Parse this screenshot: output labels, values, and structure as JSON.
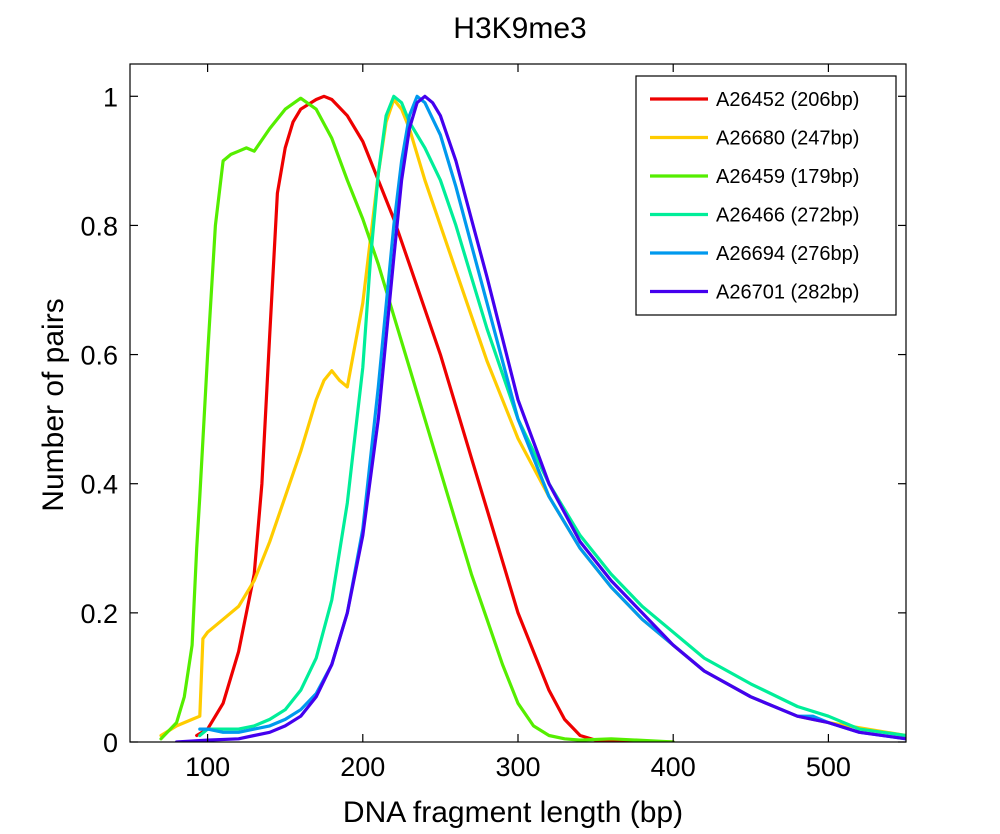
{
  "chart_data": {
    "type": "line",
    "title": "H3K9me3",
    "xlabel": "DNA fragment length (bp)",
    "ylabel": "Number of pairs",
    "xlim": [
      50,
      550
    ],
    "ylim": [
      0,
      1.05
    ],
    "xticks": [
      100,
      200,
      300,
      400,
      500
    ],
    "xtick_labels": [
      "100",
      "200",
      "300",
      "400",
      "500"
    ],
    "yticks": [
      0,
      0.2,
      0.4,
      0.6,
      0.8,
      1
    ],
    "ytick_labels": [
      "0",
      "0.2",
      "0.4",
      "0.6",
      "0.8",
      "1"
    ],
    "grid": false,
    "legend_position": "top-right",
    "series": [
      {
        "name": "A26452 (206bp)",
        "color": "#ee0000",
        "x": [
          93,
          100,
          110,
          120,
          130,
          135,
          140,
          145,
          150,
          155,
          160,
          170,
          175,
          180,
          190,
          200,
          210,
          220,
          230,
          240,
          250,
          260,
          270,
          280,
          290,
          300,
          310,
          320,
          330,
          340,
          350,
          360,
          400
        ],
        "y": [
          0.01,
          0.02,
          0.06,
          0.14,
          0.26,
          0.4,
          0.63,
          0.85,
          0.92,
          0.96,
          0.98,
          0.995,
          1.0,
          0.995,
          0.97,
          0.93,
          0.87,
          0.81,
          0.74,
          0.67,
          0.6,
          0.52,
          0.44,
          0.36,
          0.28,
          0.2,
          0.14,
          0.08,
          0.035,
          0.01,
          0.003,
          0.0,
          0.0
        ]
      },
      {
        "name": "A26680 (247bp)",
        "color": "#ffcc00",
        "x": [
          70,
          80,
          90,
          95,
          97,
          100,
          110,
          120,
          130,
          140,
          150,
          160,
          170,
          175,
          180,
          185,
          190,
          200,
          210,
          215,
          220,
          225,
          230,
          240,
          250,
          260,
          270,
          280,
          300,
          320,
          340,
          360,
          380,
          400,
          420,
          450,
          480,
          500,
          550
        ],
        "y": [
          0.01,
          0.025,
          0.035,
          0.04,
          0.16,
          0.17,
          0.19,
          0.21,
          0.25,
          0.31,
          0.38,
          0.45,
          0.53,
          0.56,
          0.575,
          0.56,
          0.55,
          0.68,
          0.88,
          0.96,
          0.995,
          0.98,
          0.95,
          0.87,
          0.8,
          0.73,
          0.66,
          0.59,
          0.47,
          0.38,
          0.3,
          0.24,
          0.19,
          0.15,
          0.11,
          0.07,
          0.04,
          0.03,
          0.01
        ]
      },
      {
        "name": "A26459 (179bp)",
        "color": "#55ee00",
        "x": [
          70,
          80,
          85,
          90,
          93,
          95,
          100,
          105,
          110,
          115,
          120,
          125,
          130,
          140,
          150,
          160,
          170,
          180,
          190,
          200,
          210,
          220,
          230,
          240,
          250,
          260,
          270,
          280,
          290,
          300,
          310,
          320,
          330,
          340,
          360,
          400
        ],
        "y": [
          0.005,
          0.03,
          0.07,
          0.15,
          0.3,
          0.38,
          0.6,
          0.8,
          0.9,
          0.91,
          0.915,
          0.92,
          0.915,
          0.95,
          0.98,
          0.997,
          0.98,
          0.935,
          0.87,
          0.81,
          0.74,
          0.66,
          0.58,
          0.5,
          0.42,
          0.34,
          0.26,
          0.19,
          0.12,
          0.06,
          0.025,
          0.01,
          0.005,
          0.003,
          0.005,
          0.0
        ]
      },
      {
        "name": "A26466 (272bp)",
        "color": "#00ee99",
        "x": [
          95,
          100,
          110,
          120,
          130,
          140,
          150,
          160,
          170,
          180,
          190,
          200,
          205,
          210,
          215,
          220,
          225,
          230,
          240,
          250,
          260,
          270,
          280,
          300,
          320,
          340,
          360,
          380,
          400,
          420,
          450,
          480,
          500,
          520,
          550
        ],
        "y": [
          0.01,
          0.02,
          0.02,
          0.02,
          0.025,
          0.035,
          0.05,
          0.08,
          0.13,
          0.22,
          0.37,
          0.58,
          0.75,
          0.88,
          0.97,
          1.0,
          0.99,
          0.96,
          0.92,
          0.87,
          0.8,
          0.72,
          0.64,
          0.5,
          0.4,
          0.32,
          0.26,
          0.21,
          0.17,
          0.13,
          0.09,
          0.055,
          0.04,
          0.02,
          0.01
        ]
      },
      {
        "name": "A26694 (276bp)",
        "color": "#0099ee",
        "x": [
          95,
          100,
          110,
          120,
          130,
          140,
          150,
          160,
          170,
          180,
          190,
          200,
          210,
          220,
          225,
          230,
          235,
          240,
          250,
          260,
          270,
          280,
          300,
          320,
          340,
          360,
          380,
          400,
          420,
          450,
          480,
          490,
          500,
          520,
          550
        ],
        "y": [
          0.02,
          0.02,
          0.015,
          0.015,
          0.02,
          0.025,
          0.035,
          0.05,
          0.075,
          0.12,
          0.2,
          0.33,
          0.55,
          0.8,
          0.9,
          0.97,
          1.0,
          0.99,
          0.94,
          0.86,
          0.77,
          0.68,
          0.5,
          0.38,
          0.3,
          0.24,
          0.19,
          0.15,
          0.11,
          0.07,
          0.04,
          0.04,
          0.03,
          0.015,
          0.005
        ]
      },
      {
        "name": "A26701 (282bp)",
        "color": "#4400ee",
        "x": [
          80,
          100,
          120,
          130,
          140,
          150,
          160,
          170,
          180,
          190,
          200,
          210,
          220,
          225,
          230,
          235,
          240,
          245,
          250,
          260,
          270,
          280,
          300,
          320,
          340,
          360,
          380,
          400,
          420,
          450,
          480,
          490,
          500,
          520,
          550
        ],
        "y": [
          0.0,
          0.003,
          0.005,
          0.01,
          0.015,
          0.025,
          0.04,
          0.07,
          0.12,
          0.2,
          0.32,
          0.5,
          0.75,
          0.87,
          0.95,
          0.99,
          1.0,
          0.99,
          0.97,
          0.9,
          0.81,
          0.72,
          0.53,
          0.4,
          0.31,
          0.25,
          0.2,
          0.15,
          0.11,
          0.07,
          0.04,
          0.035,
          0.03,
          0.015,
          0.005
        ]
      }
    ]
  }
}
